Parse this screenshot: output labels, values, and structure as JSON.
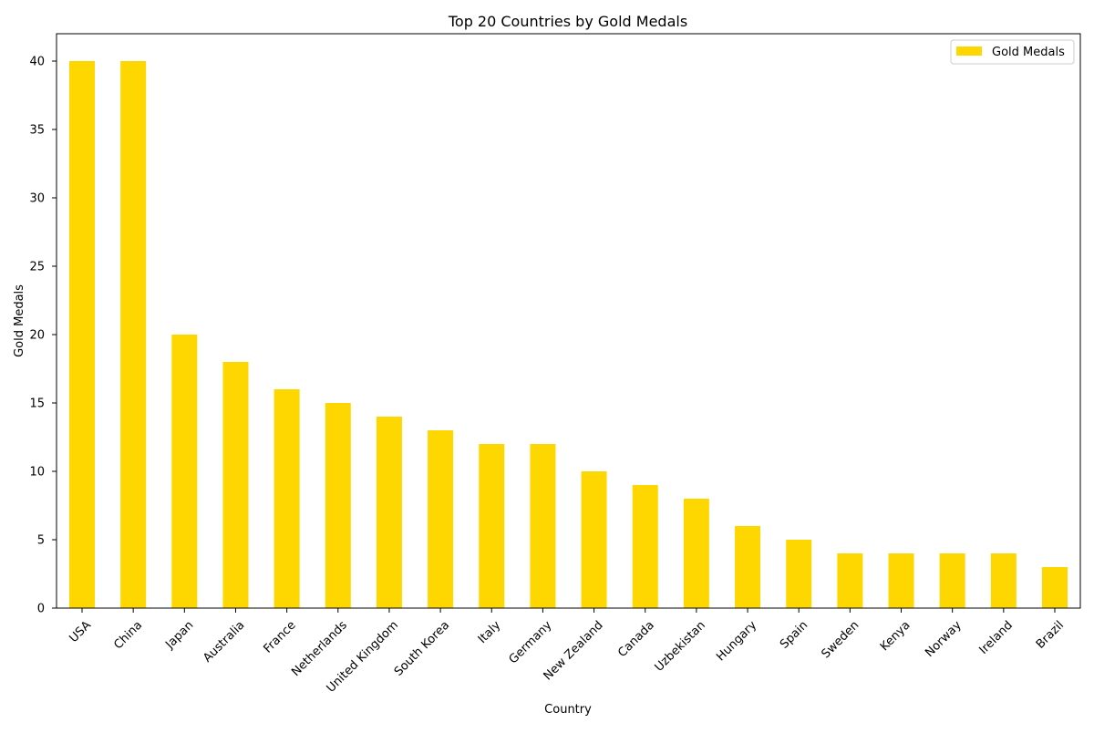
{
  "chart_data": {
    "type": "bar",
    "title": "Top 20 Countries by Gold Medals",
    "xlabel": "Country",
    "ylabel": "Gold Medals",
    "categories": [
      "USA",
      "China",
      "Japan",
      "Australia",
      "France",
      "Netherlands",
      "United Kingdom",
      "South Korea",
      "Italy",
      "Germany",
      "New Zealand",
      "Canada",
      "Uzbekistan",
      "Hungary",
      "Spain",
      "Sweden",
      "Kenya",
      "Norway",
      "Ireland",
      "Brazil"
    ],
    "series": [
      {
        "name": "Gold Medals",
        "values": [
          40,
          40,
          20,
          18,
          16,
          15,
          14,
          13,
          12,
          12,
          10,
          9,
          8,
          6,
          5,
          4,
          4,
          4,
          4,
          3
        ],
        "color": "#FFD700"
      }
    ],
    "ylim": [
      0,
      42
    ],
    "yticks": [
      0,
      5,
      10,
      15,
      20,
      25,
      30,
      35,
      40
    ],
    "grid": false,
    "legend_position": "top-right"
  }
}
